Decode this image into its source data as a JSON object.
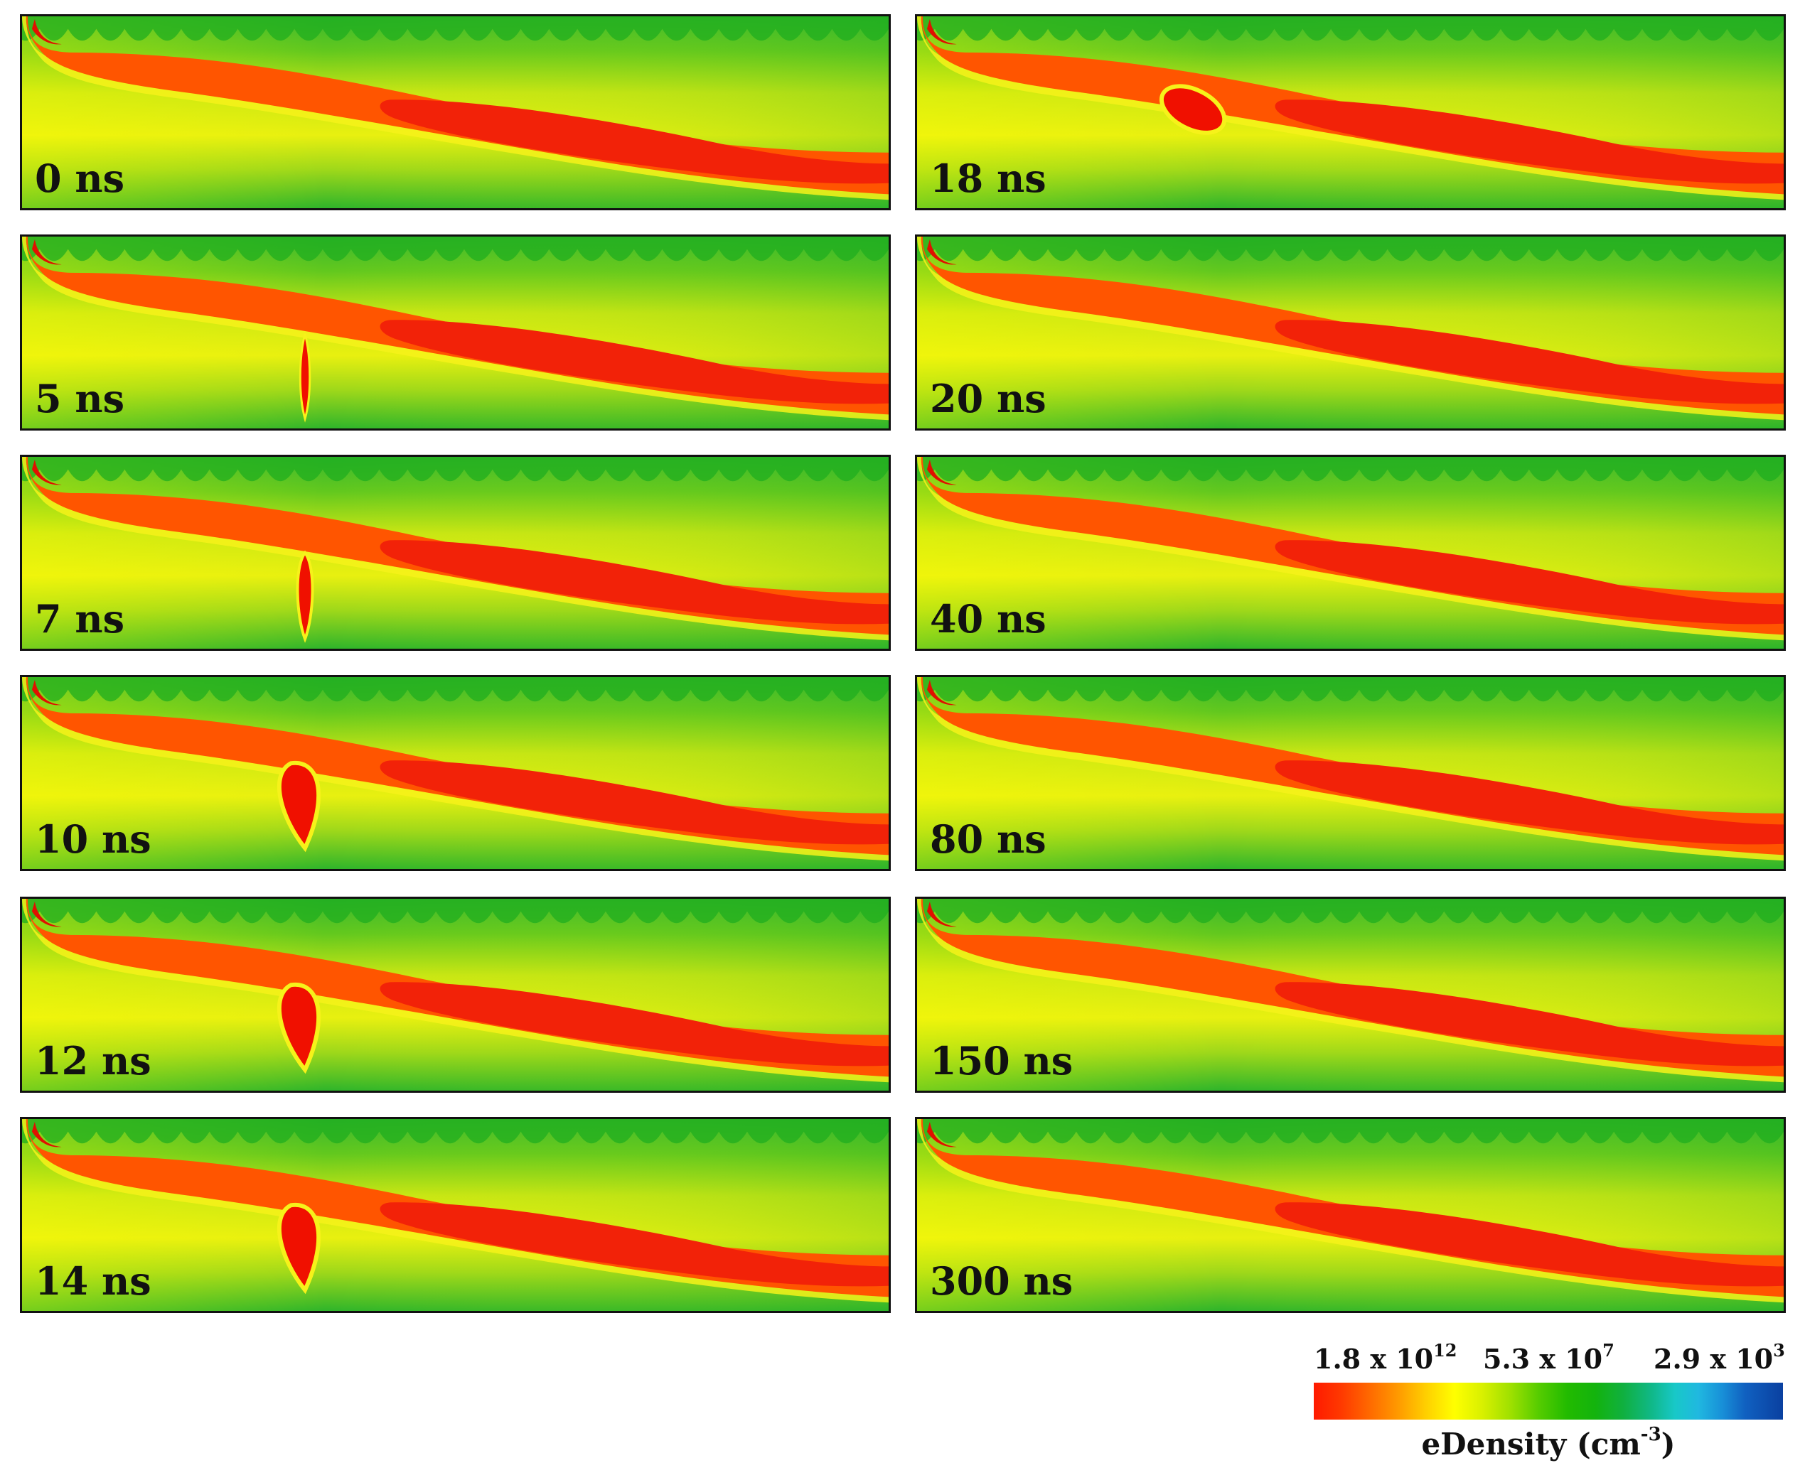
{
  "panels": [
    {
      "label": "0 ns",
      "blob": "none"
    },
    {
      "label": "18 ns",
      "blob": "ellipse"
    },
    {
      "label": "5 ns",
      "blob": "needle"
    },
    {
      "label": "20 ns",
      "blob": "none"
    },
    {
      "label": "7 ns",
      "blob": "teardrop-small"
    },
    {
      "label": "40 ns",
      "blob": "none"
    },
    {
      "label": "10 ns",
      "blob": "teardrop"
    },
    {
      "label": "80 ns",
      "blob": "none"
    },
    {
      "label": "12 ns",
      "blob": "teardrop"
    },
    {
      "label": "150 ns",
      "blob": "none"
    },
    {
      "label": "14 ns",
      "blob": "teardrop"
    },
    {
      "label": "300 ns",
      "blob": "none"
    }
  ],
  "colors": {
    "high": "#ff2a00",
    "core": "#f0180a",
    "mid_high": "#ff5a00",
    "mid": "#ffff00",
    "low": "#2bb52b",
    "lowest": "#0a40a0"
  },
  "colorbar": {
    "tick1_base": "1.8 x 10",
    "tick1_exp": "12",
    "tick2_base": "5.3 x 10",
    "tick2_exp": "7",
    "tick3_base": "2.9 x 10",
    "tick3_exp": "3",
    "title_base": "eDensity (cm",
    "title_exp": "-3",
    "title_end": ")"
  }
}
